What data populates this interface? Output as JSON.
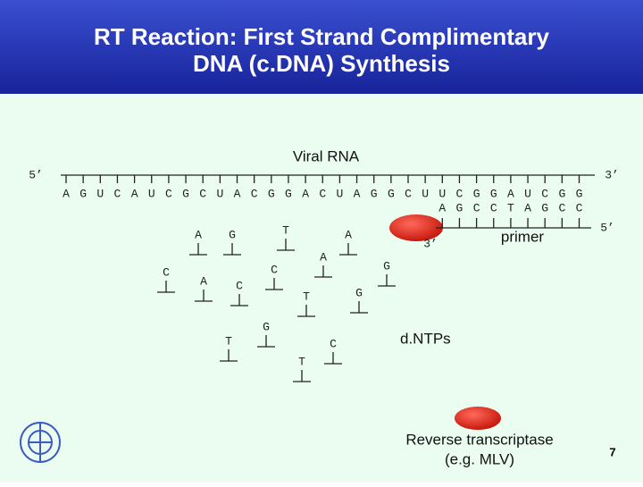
{
  "header": {
    "title_lines": [
      "RT Reaction: First Strand Complimentary",
      "DNA (c.DNA) Synthesis"
    ]
  },
  "rna": {
    "label": "Viral RNA",
    "five_prime": "5’",
    "three_prime": "3’",
    "bases": [
      "A",
      "G",
      "U",
      "C",
      "A",
      "U",
      "C",
      "G",
      "C",
      "U",
      "A",
      "C",
      "G",
      "G",
      "A",
      "C",
      "U",
      "A",
      "G",
      "G",
      "C",
      "U",
      "U",
      "C",
      "G",
      "G",
      "A",
      "U",
      "C",
      "G",
      "G"
    ]
  },
  "primer": {
    "label": "primer",
    "three_prime": "3’",
    "five_prime": "5’",
    "bases": [
      "A",
      "G",
      "C",
      "C",
      "T",
      "A",
      "G",
      "C",
      "C"
    ]
  },
  "dntps": {
    "label": "d.NTPs",
    "bases": [
      "A",
      "G",
      "T",
      "A",
      "A",
      "G",
      "C",
      "A",
      "C",
      "C",
      "T",
      "G",
      "G",
      "T",
      "C",
      "T"
    ]
  },
  "enzyme": {
    "label_lines": [
      "Reverse transcriptase",
      "(e.g. MLV)"
    ]
  },
  "page_number": "7"
}
